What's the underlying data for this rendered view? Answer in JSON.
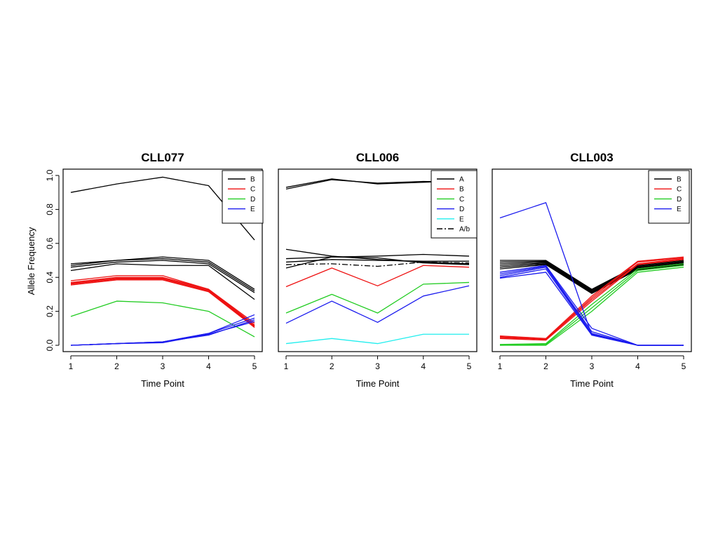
{
  "figure": {
    "ylabel": "Allele Frequency",
    "xlabel": "Time Point"
  },
  "colors": {
    "black": "#000000",
    "red": "#ee1111",
    "green": "#22cc22",
    "blue": "#1a1aee",
    "cyan": "#22eeee"
  },
  "chart_data": [
    {
      "type": "line",
      "title": "CLL077",
      "xlabel": "Time Point",
      "ylabel": "Allele Frequency",
      "x": [
        1,
        2,
        3,
        4,
        5
      ],
      "xlim": [
        1,
        5
      ],
      "ylim": [
        0,
        1
      ],
      "xticks": [
        "1",
        "2",
        "3",
        "4",
        "5"
      ],
      "yticks": [
        "0.0",
        "0.2",
        "0.4",
        "0.6",
        "0.8",
        "1.0"
      ],
      "legend_position": "top-right",
      "legend": [
        {
          "label": "B",
          "color": "#000000",
          "dash": "solid"
        },
        {
          "label": "C",
          "color": "#ee1111",
          "dash": "solid"
        },
        {
          "label": "D",
          "color": "#22cc22",
          "dash": "solid"
        },
        {
          "label": "E",
          "color": "#1a1aee",
          "dash": "solid"
        }
      ],
      "series": [
        {
          "group": "B",
          "color": "#000000",
          "values": [
            0.9,
            0.95,
            0.99,
            0.94,
            0.62
          ]
        },
        {
          "group": "B",
          "color": "#000000",
          "values": [
            0.48,
            0.5,
            0.52,
            0.5,
            0.33
          ]
        },
        {
          "group": "B",
          "color": "#000000",
          "values": [
            0.47,
            0.5,
            0.51,
            0.49,
            0.32
          ]
        },
        {
          "group": "B",
          "color": "#000000",
          "values": [
            0.46,
            0.49,
            0.5,
            0.48,
            0.31
          ]
        },
        {
          "group": "B",
          "color": "#000000",
          "values": [
            0.44,
            0.48,
            0.47,
            0.47,
            0.27
          ]
        },
        {
          "group": "C",
          "color": "#ee1111",
          "values": [
            0.38,
            0.41,
            0.41,
            0.33,
            0.13
          ]
        },
        {
          "group": "C",
          "color": "#ee1111",
          "values": [
            0.37,
            0.4,
            0.4,
            0.33,
            0.12
          ]
        },
        {
          "group": "C",
          "color": "#ee1111",
          "values": [
            0.365,
            0.395,
            0.395,
            0.325,
            0.115
          ]
        },
        {
          "group": "C",
          "color": "#ee1111",
          "values": [
            0.36,
            0.39,
            0.39,
            0.32,
            0.11
          ]
        },
        {
          "group": "C",
          "color": "#ee1111",
          "values": [
            0.355,
            0.385,
            0.385,
            0.315,
            0.105
          ]
        },
        {
          "group": "D",
          "color": "#22cc22",
          "values": [
            0.17,
            0.26,
            0.25,
            0.2,
            0.05
          ]
        },
        {
          "group": "E",
          "color": "#1a1aee",
          "values": [
            0.0,
            0.01,
            0.02,
            0.07,
            0.18
          ]
        },
        {
          "group": "E",
          "color": "#1a1aee",
          "values": [
            0.0,
            0.01,
            0.02,
            0.07,
            0.16
          ]
        },
        {
          "group": "E",
          "color": "#1a1aee",
          "values": [
            0.0,
            0.01,
            0.02,
            0.06,
            0.15
          ]
        },
        {
          "group": "E",
          "color": "#1a1aee",
          "values": [
            0.0,
            0.01,
            0.015,
            0.065,
            0.14
          ]
        }
      ]
    },
    {
      "type": "line",
      "title": "CLL006",
      "xlabel": "Time Point",
      "ylabel": "",
      "x": [
        1,
        2,
        3,
        4,
        5
      ],
      "xlim": [
        1,
        5
      ],
      "ylim": [
        0,
        1
      ],
      "xticks": [
        "1",
        "2",
        "3",
        "4",
        "5"
      ],
      "yticks": [],
      "legend_position": "top-right",
      "legend": [
        {
          "label": "A",
          "color": "#000000",
          "dash": "solid"
        },
        {
          "label": "B",
          "color": "#ee1111",
          "dash": "solid"
        },
        {
          "label": "C",
          "color": "#22cc22",
          "dash": "solid"
        },
        {
          "label": "D",
          "color": "#1a1aee",
          "dash": "solid"
        },
        {
          "label": "E",
          "color": "#22eeee",
          "dash": "solid"
        },
        {
          "label": "A/b",
          "color": "#000000",
          "dash": "dashdot"
        }
      ],
      "series": [
        {
          "group": "A",
          "color": "#000000",
          "values": [
            0.93,
            0.98,
            0.95,
            0.96,
            0.97
          ]
        },
        {
          "group": "A",
          "color": "#000000",
          "values": [
            0.92,
            0.975,
            0.955,
            0.965,
            0.96
          ]
        },
        {
          "group": "A",
          "color": "#000000",
          "values": [
            0.565,
            0.525,
            0.505,
            0.49,
            0.48
          ]
        },
        {
          "group": "A",
          "color": "#000000",
          "values": [
            0.51,
            0.52,
            0.525,
            0.535,
            0.525
          ]
        },
        {
          "group": "A",
          "color": "#000000",
          "values": [
            0.49,
            0.505,
            0.5,
            0.495,
            0.495
          ]
        },
        {
          "group": "A",
          "color": "#000000",
          "values": [
            0.455,
            0.52,
            0.515,
            0.485,
            0.475
          ]
        },
        {
          "group": "A/b",
          "color": "#000000",
          "dash": "dashdot",
          "values": [
            0.475,
            0.48,
            0.465,
            0.49,
            0.485
          ]
        },
        {
          "group": "B",
          "color": "#ee1111",
          "values": [
            0.345,
            0.455,
            0.35,
            0.47,
            0.46
          ]
        },
        {
          "group": "C",
          "color": "#22cc22",
          "values": [
            0.19,
            0.3,
            0.19,
            0.36,
            0.37
          ]
        },
        {
          "group": "D",
          "color": "#1a1aee",
          "values": [
            0.13,
            0.26,
            0.135,
            0.29,
            0.35
          ]
        },
        {
          "group": "E",
          "color": "#22eeee",
          "values": [
            0.01,
            0.04,
            0.01,
            0.065,
            0.065
          ]
        }
      ]
    },
    {
      "type": "line",
      "title": "CLL003",
      "xlabel": "Time Point",
      "ylabel": "",
      "x": [
        1,
        2,
        3,
        4,
        5
      ],
      "xlim": [
        1,
        5
      ],
      "ylim": [
        0,
        1
      ],
      "xticks": [
        "1",
        "2",
        "3",
        "4",
        "5"
      ],
      "yticks": [],
      "legend_position": "top-right",
      "legend": [
        {
          "label": "B",
          "color": "#000000",
          "dash": "solid"
        },
        {
          "label": "C",
          "color": "#ee1111",
          "dash": "solid"
        },
        {
          "label": "D",
          "color": "#22cc22",
          "dash": "solid"
        },
        {
          "label": "E",
          "color": "#1a1aee",
          "dash": "solid"
        }
      ],
      "series": [
        {
          "group": "B",
          "color": "#000000",
          "values": [
            0.5,
            0.5,
            0.33,
            0.47,
            0.5
          ]
        },
        {
          "group": "B",
          "color": "#000000",
          "values": [
            0.49,
            0.495,
            0.325,
            0.465,
            0.495
          ]
        },
        {
          "group": "B",
          "color": "#000000",
          "values": [
            0.48,
            0.49,
            0.32,
            0.46,
            0.49
          ]
        },
        {
          "group": "B",
          "color": "#000000",
          "values": [
            0.47,
            0.485,
            0.315,
            0.455,
            0.485
          ]
        },
        {
          "group": "B",
          "color": "#000000",
          "values": [
            0.46,
            0.48,
            0.31,
            0.45,
            0.48
          ]
        },
        {
          "group": "B",
          "color": "#000000",
          "values": [
            0.45,
            0.475,
            0.305,
            0.445,
            0.475
          ]
        },
        {
          "group": "C",
          "color": "#ee1111",
          "values": [
            0.055,
            0.04,
            0.29,
            0.495,
            0.52
          ]
        },
        {
          "group": "C",
          "color": "#ee1111",
          "values": [
            0.05,
            0.035,
            0.28,
            0.49,
            0.515
          ]
        },
        {
          "group": "C",
          "color": "#ee1111",
          "values": [
            0.045,
            0.035,
            0.27,
            0.48,
            0.51
          ]
        },
        {
          "group": "C",
          "color": "#ee1111",
          "values": [
            0.04,
            0.03,
            0.26,
            0.475,
            0.505
          ]
        },
        {
          "group": "D",
          "color": "#22cc22",
          "values": [
            0.005,
            0.01,
            0.24,
            0.45,
            0.48
          ]
        },
        {
          "group": "D",
          "color": "#22cc22",
          "values": [
            0.0,
            0.005,
            0.22,
            0.44,
            0.47
          ]
        },
        {
          "group": "D",
          "color": "#22cc22",
          "values": [
            0.0,
            0.0,
            0.2,
            0.43,
            0.46
          ]
        },
        {
          "group": "E",
          "color": "#1a1aee",
          "values": [
            0.75,
            0.84,
            0.06,
            0.0,
            0.0
          ]
        },
        {
          "group": "E",
          "color": "#1a1aee",
          "values": [
            0.43,
            0.47,
            0.1,
            0.0,
            0.0
          ]
        },
        {
          "group": "E",
          "color": "#1a1aee",
          "values": [
            0.42,
            0.465,
            0.08,
            0.0,
            0.0
          ]
        },
        {
          "group": "E",
          "color": "#1a1aee",
          "values": [
            0.41,
            0.46,
            0.07,
            0.0,
            0.0
          ]
        },
        {
          "group": "E",
          "color": "#1a1aee",
          "values": [
            0.4,
            0.45,
            0.065,
            0.0,
            0.0
          ]
        },
        {
          "group": "E",
          "color": "#1a1aee",
          "values": [
            0.395,
            0.43,
            0.06,
            0.0,
            0.0
          ]
        }
      ]
    }
  ]
}
